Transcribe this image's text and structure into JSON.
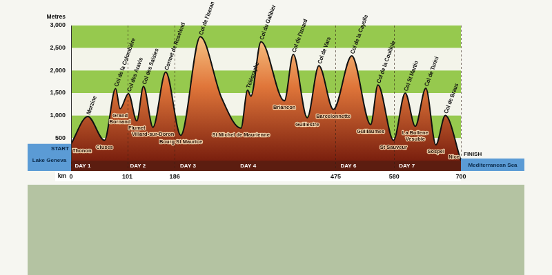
{
  "chart_data": {
    "type": "area",
    "y_label": "Metres",
    "x_label": "km",
    "x": [
      0,
      30,
      60,
      80,
      88,
      103,
      118,
      130,
      147,
      170,
      197,
      232,
      270,
      305,
      317,
      323,
      341,
      383,
      399,
      424,
      445,
      471,
      504,
      538,
      551,
      579,
      600,
      618,
      637,
      655,
      672,
      700
    ],
    "values": [
      372,
      980,
      450,
      1600,
      1150,
      1490,
      880,
      1650,
      740,
      1968,
      560,
      2750,
      1400,
      720,
      1566,
      1430,
      2642,
      1326,
      2360,
      950,
      2108,
      1135,
      2326,
      800,
      1678,
      450,
      1500,
      760,
      1607,
      350,
      1002,
      0
    ],
    "pass_labels": [
      null,
      "Morzine",
      null,
      "Col de la Colombière",
      null,
      "Col des Aravis",
      null,
      "Col des Saisies",
      null,
      "Cormet de Roselend",
      null,
      "Col de l'Iseran",
      null,
      null,
      "Télégraphe",
      null,
      "Col du Galibier",
      null,
      "Col de l'Izoard",
      null,
      "Col de Vars",
      null,
      "Col de la Cayolle",
      null,
      "Col de la Couillole",
      null,
      "Col St Martin",
      null,
      "Col de Turini",
      null,
      "Col de Braus",
      null
    ],
    "town_labels": [
      "Thonon",
      null,
      "Cluses",
      null,
      "Grand\nBornand",
      null,
      "Flumet",
      null,
      "Villard-sur-Doron",
      null,
      "Bourg St Maurice",
      null,
      null,
      "St Michel de Maurienne",
      null,
      null,
      null,
      "Briancon",
      null,
      "Guillestre",
      null,
      "Barcelonnette",
      null,
      "Guillaumes",
      null,
      "St Sauveur",
      null,
      "La Bollene\nVesubie",
      null,
      "Sospel",
      null,
      "Nice"
    ],
    "day_labels": [
      {
        "label": "DAY 1",
        "x": 21
      },
      {
        "label": "DAY 2",
        "x": 120
      },
      {
        "label": "DAY 3",
        "x": 210
      },
      {
        "label": "DAY 4",
        "x": 318
      },
      {
        "label": "DAY 6",
        "x": 498
      },
      {
        "label": "DAY 7",
        "x": 603
      }
    ],
    "start_label": "START",
    "finish_label": "FINISH",
    "start_water": "Lake Geneva",
    "finish_water": "Mediterranean Sea",
    "color": "#e0763a",
    "xlim": [
      0,
      700
    ],
    "xticks": [
      0,
      101,
      186,
      475,
      580,
      700
    ],
    "ylim": [
      0,
      3000
    ],
    "yticks": [
      500,
      {
        "value": 1000,
        "label": "1,000"
      },
      {
        "value": 1500,
        "label": "1,500"
      },
      {
        "value": 2000,
        "label": "2,000"
      },
      {
        "value": 2500,
        "label": "2,500"
      },
      {
        "value": 3000,
        "label": "3,000"
      }
    ],
    "grid": true
  }
}
